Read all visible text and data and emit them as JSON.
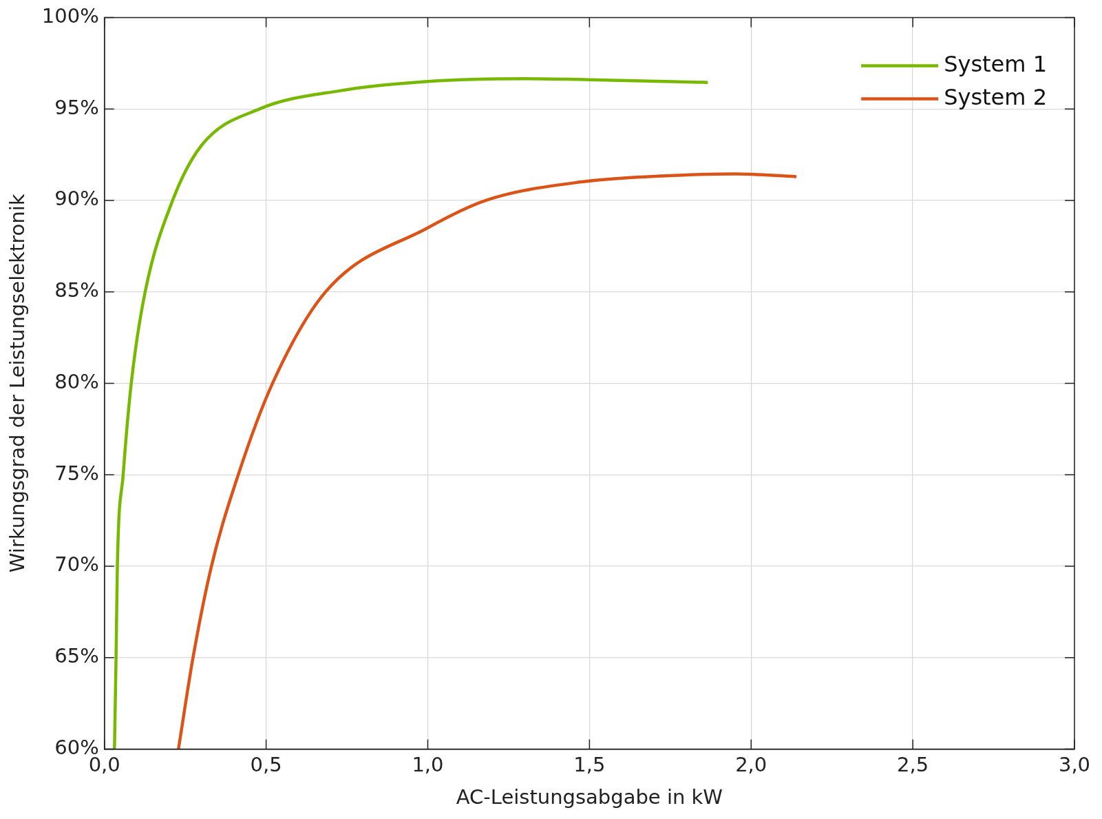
{
  "chart_data": {
    "type": "line",
    "xlabel": "AC-Leistungsabgabe in kW",
    "ylabel": "Wirkungsgrad der Leistungselektronik",
    "xlim": [
      0,
      3
    ],
    "xticks": [
      {
        "value": 0,
        "label": "0,0"
      },
      {
        "value": 0.5,
        "label": "0,5"
      },
      {
        "value": 1,
        "label": "1,0"
      },
      {
        "value": 1.5,
        "label": "1,5"
      },
      {
        "value": 2,
        "label": "2,0"
      },
      {
        "value": 2.5,
        "label": "2,5"
      },
      {
        "value": 3,
        "label": "3,0"
      }
    ],
    "ylim": [
      60,
      100
    ],
    "yticks": [
      {
        "value": 60,
        "label": "60%"
      },
      {
        "value": 65,
        "label": "65%"
      },
      {
        "value": 70,
        "label": "70%"
      },
      {
        "value": 75,
        "label": "75%"
      },
      {
        "value": 80,
        "label": "80%"
      },
      {
        "value": 85,
        "label": "85%"
      },
      {
        "value": 90,
        "label": "90%"
      },
      {
        "value": 95,
        "label": "95%"
      },
      {
        "value": 100,
        "label": "100%"
      }
    ],
    "grid": true,
    "legend": "top right",
    "marker": "none",
    "line_style": "solid",
    "series": [
      {
        "name": "System 1",
        "color": "#77b800",
        "x": [
          0.031,
          0.036,
          0.04,
          0.058,
          0.083,
          0.126,
          0.211,
          0.3,
          0.48,
          0.73,
          1.0,
          1.3,
          1.5,
          1.866
        ],
        "values": [
          60,
          65,
          70,
          75,
          80,
          85,
          90,
          93,
          95,
          96,
          96.5,
          96.65,
          96.6,
          96.45
        ]
      },
      {
        "name": "System 2",
        "color": "#dc5318",
        "x": [
          0.229,
          0.274,
          0.331,
          0.414,
          0.52,
          0.684,
          1.0,
          1.18,
          1.47,
          1.81,
          1.95,
          2.14
        ],
        "values": [
          60,
          65,
          70,
          75,
          80,
          85,
          88.5,
          90,
          91,
          91.4,
          91.45,
          91.3
        ]
      }
    ]
  }
}
